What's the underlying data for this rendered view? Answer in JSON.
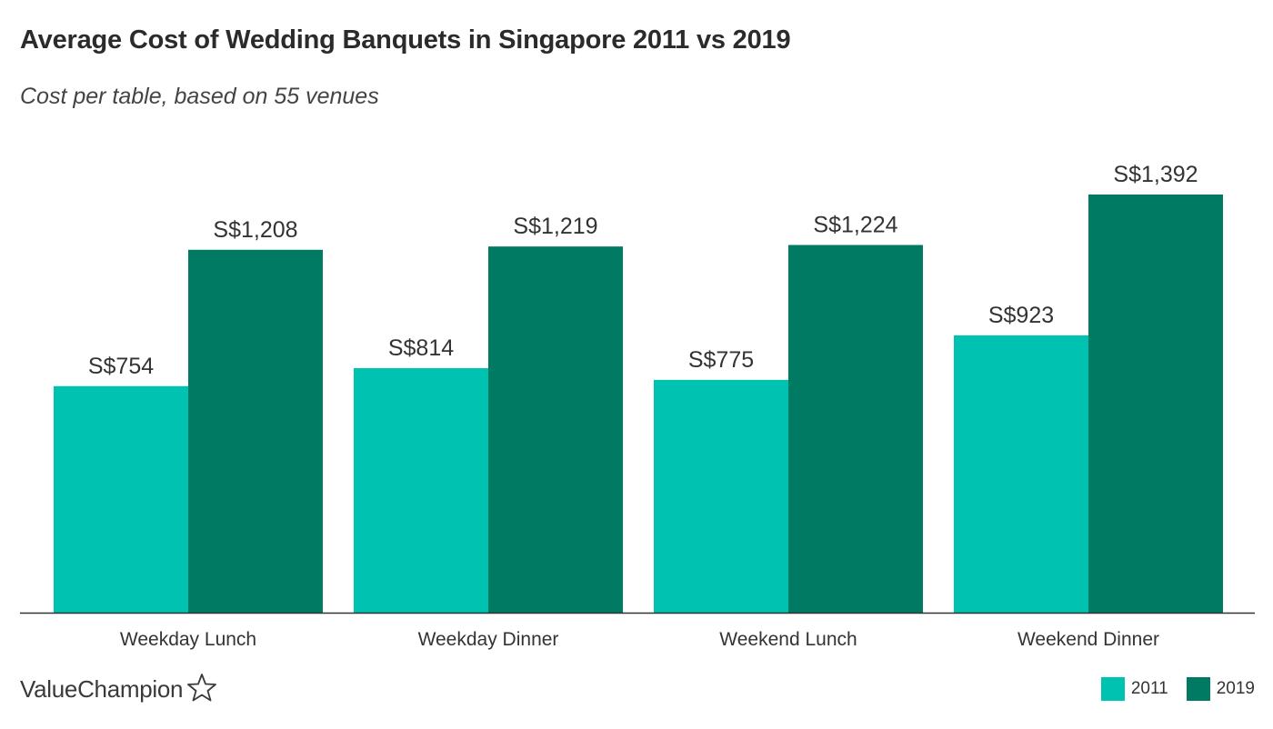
{
  "chart_data": {
    "type": "bar",
    "title": "Average Cost of Wedding Banquets in Singapore 2011 vs 2019",
    "subtitle": "Cost per table, based on 55 venues",
    "categories": [
      "Weekday Lunch",
      "Weekday Dinner",
      "Weekend Lunch",
      "Weekend Dinner"
    ],
    "series": [
      {
        "name": "2011",
        "values": [
          754,
          814,
          775,
          923
        ],
        "labels": [
          "S$754",
          "S$814",
          "S$775",
          "S$923"
        ],
        "color": "#00c2b0"
      },
      {
        "name": "2019",
        "values": [
          1208,
          1219,
          1224,
          1392
        ],
        "labels": [
          "S$1,208",
          "S$1,219",
          "S$1,224",
          "S$1,392"
        ],
        "color": "#007a63"
      }
    ],
    "ylim": [
      0,
      1392
    ],
    "grid": false,
    "legend_position": "bottom-right"
  },
  "brand": {
    "name": "ValueChampion",
    "icon": "star-outline-icon"
  },
  "colors": {
    "axis": "#333333",
    "text": "#333333"
  }
}
